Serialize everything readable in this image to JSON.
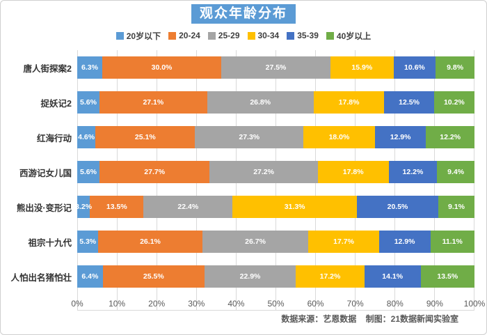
{
  "title": {
    "text": "观众年龄分布"
  },
  "chart_data": {
    "type": "bar",
    "stacked": true,
    "orientation": "horizontal",
    "title": "观众年龄分布",
    "categories": [
      "唐人街探案2",
      "捉妖记2",
      "红海行动",
      "西游记女儿国",
      "熊出没·变形记",
      "祖宗十九代",
      "人怕出名猪怕壮"
    ],
    "series": [
      {
        "name": "20岁以下",
        "color": "#5B9BD5",
        "values": [
          6.3,
          5.6,
          4.6,
          5.6,
          3.2,
          5.3,
          6.4
        ]
      },
      {
        "name": "20-24",
        "color": "#ED7D31",
        "values": [
          30.0,
          27.1,
          25.1,
          27.7,
          13.5,
          26.1,
          25.5
        ]
      },
      {
        "name": "25-29",
        "color": "#A5A5A5",
        "values": [
          27.5,
          26.8,
          27.3,
          27.2,
          22.4,
          26.7,
          22.9
        ]
      },
      {
        "name": "30-34",
        "color": "#FFC000",
        "values": [
          15.9,
          17.8,
          18.0,
          17.8,
          31.3,
          17.7,
          17.2
        ]
      },
      {
        "name": "35-39",
        "color": "#4472C4",
        "values": [
          10.6,
          12.5,
          12.9,
          12.2,
          20.5,
          12.9,
          14.1
        ]
      },
      {
        "name": "40岁以上",
        "color": "#70AD47",
        "values": [
          9.8,
          10.2,
          12.2,
          9.4,
          9.1,
          11.1,
          13.5
        ]
      }
    ],
    "x_axis": {
      "ticks": [
        "0%",
        "10%",
        "20%",
        "30%",
        "40%",
        "50%",
        "60%",
        "70%",
        "80%",
        "90%",
        "100%"
      ],
      "range": [
        0,
        100
      ]
    },
    "value_suffix": "%",
    "value_decimals": 1,
    "legend_position": "top",
    "grid": true
  },
  "footer": {
    "source": "数据来源：艺恩数据",
    "credit": "制图：21数据新闻实验室"
  },
  "colors": {
    "title_bg": "#5B9BD5",
    "title_text": "#FFFFFF",
    "grid": "#D9D9D9",
    "axis_text": "#595959",
    "category_text": "#333333",
    "segment_label_text": "#FFFFFF"
  }
}
